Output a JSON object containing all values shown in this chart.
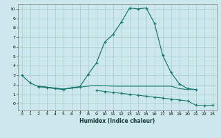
{
  "xlabel": "Humidex (Indice chaleur)",
  "bg_color": "#cce8ec",
  "grid_color": "#aacccc",
  "line_color": "#1a7a6e",
  "x_ticks": [
    0,
    1,
    2,
    3,
    4,
    5,
    6,
    7,
    8,
    9,
    10,
    11,
    12,
    13,
    14,
    15,
    16,
    17,
    18,
    19,
    20,
    21,
    22,
    23
  ],
  "ylim": [
    -0.7,
    10.5
  ],
  "xlim": [
    -0.5,
    23.5
  ],
  "line_main_x": [
    0,
    1,
    2,
    3,
    4,
    5,
    6,
    7,
    8,
    9,
    10,
    11,
    12,
    13,
    14,
    15,
    16,
    17,
    18,
    19,
    20,
    21
  ],
  "line_main_y": [
    3.0,
    2.2,
    1.8,
    1.7,
    1.6,
    1.5,
    1.7,
    1.8,
    3.1,
    4.3,
    6.5,
    7.3,
    8.6,
    10.1,
    10.0,
    10.1,
    8.5,
    5.1,
    3.3,
    2.1,
    1.6,
    1.5
  ],
  "line_flat1_x": [
    2,
    3,
    4,
    5,
    6,
    7,
    8,
    9,
    10,
    11,
    12,
    13,
    14,
    15,
    16,
    17,
    18,
    19,
    20,
    21
  ],
  "line_flat1_y": [
    1.85,
    1.75,
    1.65,
    1.55,
    1.65,
    1.75,
    1.85,
    1.95,
    1.9,
    1.85,
    1.85,
    1.85,
    1.85,
    1.85,
    1.85,
    1.85,
    1.85,
    1.6,
    1.5,
    1.5
  ],
  "line_flat2_x": [
    2,
    3,
    4,
    5,
    6,
    7
  ],
  "line_flat2_y": [
    1.85,
    1.75,
    1.65,
    1.55,
    1.65,
    1.75
  ],
  "line_desc_x": [
    9,
    10,
    11,
    12,
    13,
    14,
    15,
    16,
    17,
    18,
    19,
    20,
    21,
    22,
    23
  ],
  "line_desc_y": [
    1.4,
    1.3,
    1.2,
    1.1,
    1.0,
    0.9,
    0.8,
    0.7,
    0.6,
    0.5,
    0.4,
    0.3,
    -0.15,
    -0.2,
    -0.15
  ]
}
